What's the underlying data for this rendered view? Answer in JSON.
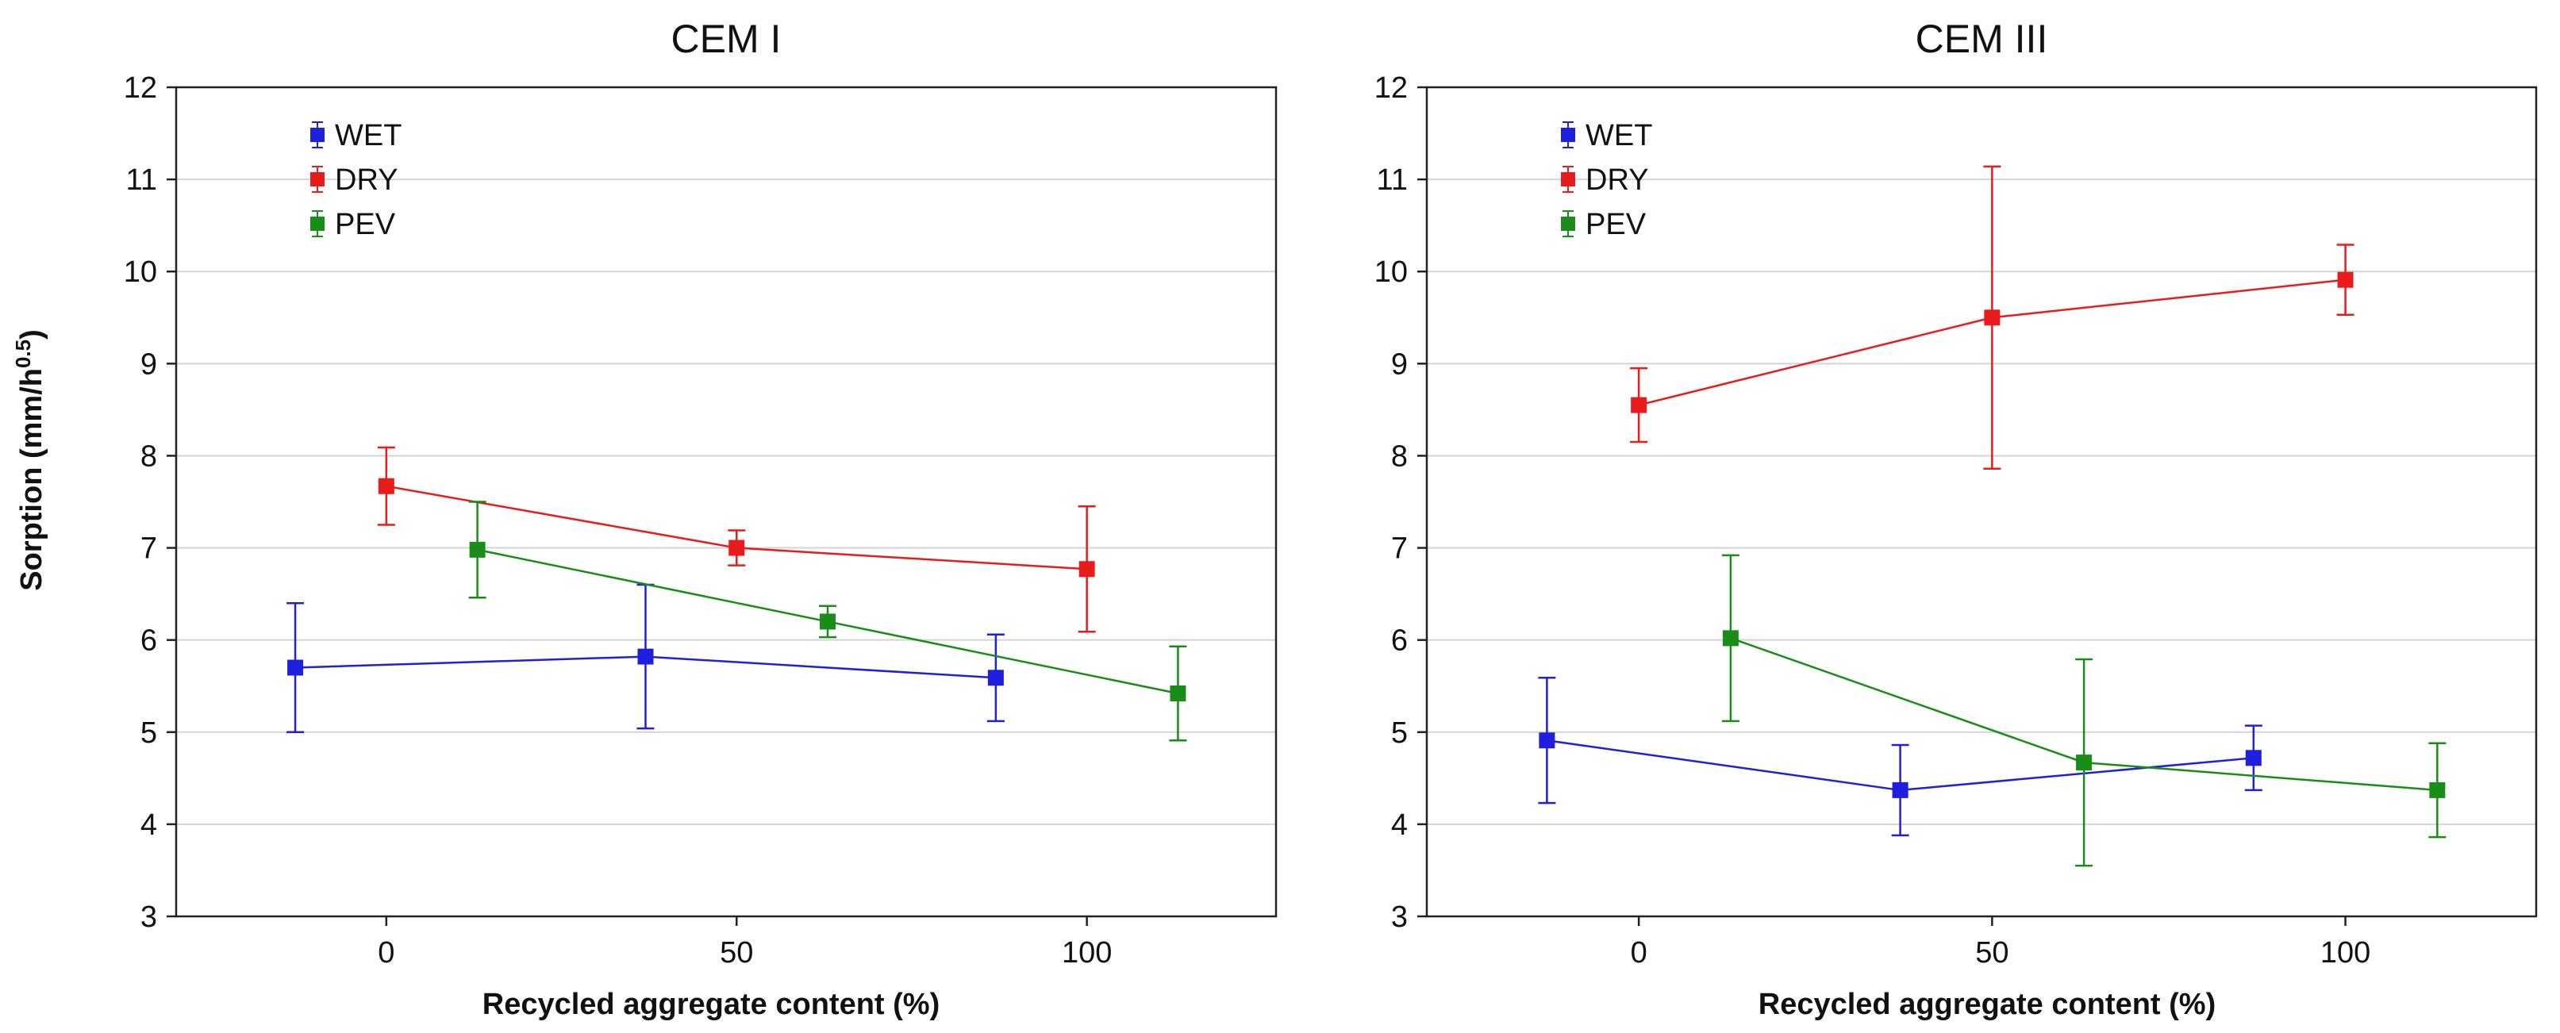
{
  "y_axis_label": "Sorption (mm/h",
  "y_axis_label_sup": "0.5",
  "y_axis_label_end": ")",
  "x_axis_label": "Recycled aggregate content (%)",
  "chart_data": [
    {
      "type": "line",
      "title": "CEM I",
      "xlabel": "Recycled aggregate content (%)",
      "ylabel": "Sorption (mm/h^0.5)",
      "xlim": [
        -30,
        127
      ],
      "ylim": [
        3,
        12
      ],
      "x_ticks": [
        0,
        50,
        100
      ],
      "y_ticks": [
        3,
        4,
        5,
        6,
        7,
        8,
        9,
        10,
        11,
        12
      ],
      "grid": "horizontal",
      "legend_position": "top-left",
      "series": [
        {
          "name": "WET",
          "color": "#1f1fe0",
          "x": [
            -13,
            37,
            87
          ],
          "y": [
            5.7,
            5.82,
            5.59
          ],
          "err": [
            0.7,
            0.78,
            0.47
          ]
        },
        {
          "name": "DRY",
          "color": "#e81c1c",
          "x": [
            0,
            50,
            100
          ],
          "y": [
            7.67,
            7.0,
            6.77
          ],
          "err": [
            0.42,
            0.19,
            0.68
          ]
        },
        {
          "name": "PEV",
          "color": "#1a8c1a",
          "x": [
            13,
            63,
            113
          ],
          "y": [
            6.98,
            6.2,
            5.42
          ],
          "err": [
            0.52,
            0.17,
            0.51
          ]
        }
      ]
    },
    {
      "type": "line",
      "title": "CEM III",
      "xlabel": "Recycled aggregate content (%)",
      "ylabel": "Sorption (mm/h^0.5)",
      "xlim": [
        -30,
        127
      ],
      "ylim": [
        3,
        12
      ],
      "x_ticks": [
        0,
        50,
        100
      ],
      "y_ticks": [
        3,
        4,
        5,
        6,
        7,
        8,
        9,
        10,
        11,
        12
      ],
      "grid": "horizontal",
      "legend_position": "top-left",
      "series": [
        {
          "name": "WET",
          "color": "#1f1fe0",
          "x": [
            -13,
            37,
            87
          ],
          "y": [
            4.91,
            4.37,
            4.72
          ],
          "err": [
            0.68,
            0.49,
            0.35
          ]
        },
        {
          "name": "DRY",
          "color": "#e81c1c",
          "x": [
            0,
            50,
            100
          ],
          "y": [
            8.55,
            9.5,
            9.91
          ],
          "err": [
            0.4,
            1.64,
            0.38
          ]
        },
        {
          "name": "PEV",
          "color": "#1a8c1a",
          "x": [
            13,
            63,
            113
          ],
          "y": [
            6.02,
            4.67,
            4.37
          ],
          "err": [
            0.9,
            1.12,
            0.51
          ]
        }
      ]
    }
  ]
}
